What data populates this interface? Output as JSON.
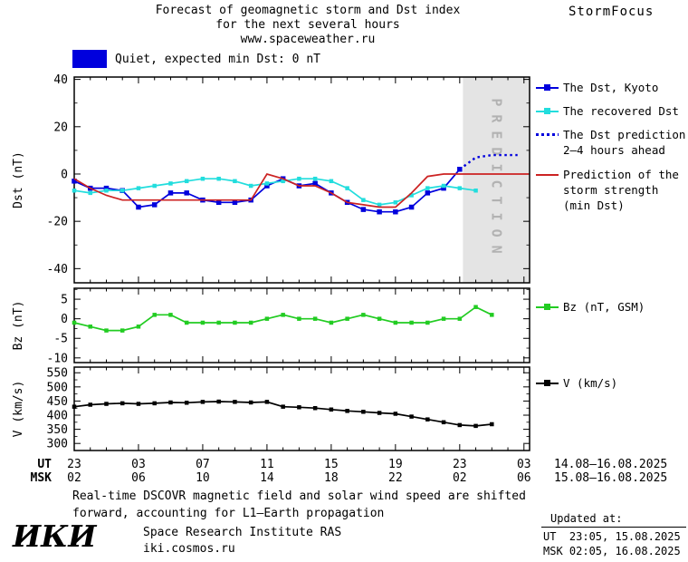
{
  "header": {
    "title_line1": "Forecast of geomagnetic storm and Dst index",
    "title_line2": "for the next several hours",
    "title_line3": "www.spaceweather.ru",
    "brand": "StormFocus"
  },
  "banner": {
    "status_label": "Quiet, expected min Dst: 0 nT",
    "swatch_color": "#0000dd"
  },
  "legend": {
    "items": [
      {
        "key": "dst-kyoto",
        "lines": [
          "The Dst, Kyoto"
        ],
        "color": "#0000dd",
        "marker": "line-square"
      },
      {
        "key": "recovered-dst",
        "lines": [
          "The recovered Dst"
        ],
        "color": "#22dddd",
        "marker": "line-square"
      },
      {
        "key": "dst-prediction",
        "lines": [
          "The Dst prediction",
          "2–4 hours ahead"
        ],
        "color": "#0000dd",
        "marker": "dotted-line"
      },
      {
        "key": "storm-strength",
        "lines": [
          "Prediction of the",
          "storm strength",
          "(min Dst)"
        ],
        "color": "#cc2222",
        "marker": "line"
      },
      {
        "key": "bz",
        "lines": [
          "Bz (nT, GSM)"
        ],
        "color": "#22cc22",
        "marker": "line-square"
      },
      {
        "key": "v",
        "lines": [
          "V (km/s)"
        ],
        "color": "#000000",
        "marker": "line-square"
      }
    ]
  },
  "footer": {
    "note_line1": "Real-time DSCOVR magnetic field and solar wind speed are shifted",
    "note_line2": "forward, accounting for L1–Earth propagation",
    "logo_text": "ИКИ",
    "institute": "Space Research Institute RAS",
    "website": "iki.cosmos.ru",
    "updated_label": "Updated at:",
    "updated_ut": "UT  23:05, 15.08.2025",
    "updated_msk": "MSK 02:05, 16.08.2025"
  },
  "chart_data": [
    {
      "type": "line",
      "panel": "dst",
      "ylabel": "Dst (nT)",
      "ylim": [
        -46,
        41
      ],
      "yticks": [
        -40,
        -20,
        0,
        20,
        40
      ],
      "xlim": [
        0,
        28.35
      ],
      "xticks": [
        0,
        4,
        8,
        12,
        16,
        20,
        24,
        28
      ],
      "grid": false,
      "legend_position": "right",
      "prediction_region": {
        "x_start": 24.2,
        "label": "PREDICTION"
      },
      "series": [
        {
          "key": "dst-kyoto",
          "name": "The Dst, Kyoto",
          "color": "#0000dd",
          "style": "solid",
          "marker": "square",
          "x": [
            0,
            1,
            2,
            3,
            4,
            5,
            6,
            7,
            8,
            9,
            10,
            11,
            12,
            13,
            14,
            15,
            16,
            17,
            18,
            19,
            20,
            21,
            22,
            23,
            24
          ],
          "values": [
            -3,
            -6,
            -6,
            -7,
            -14,
            -13,
            -8,
            -8,
            -11,
            -12,
            -12,
            -11,
            -5,
            -2,
            -5,
            -4,
            -8,
            -12,
            -15,
            -16,
            -16,
            -14,
            -8,
            -6,
            2
          ]
        },
        {
          "key": "recovered-dst",
          "name": "The recovered Dst",
          "color": "#22dddd",
          "style": "solid",
          "marker": "square",
          "x": [
            0,
            1,
            2,
            3,
            4,
            5,
            6,
            7,
            8,
            9,
            10,
            11,
            12,
            13,
            14,
            15,
            16,
            17,
            18,
            19,
            20,
            21,
            22,
            23,
            24,
            25
          ],
          "values": [
            -7,
            -8,
            -7,
            -7,
            -6,
            -5,
            -4,
            -3,
            -2,
            -2,
            -3,
            -5,
            -4,
            -3,
            -2,
            -2,
            -3,
            -6,
            -11,
            -13,
            -12,
            -9,
            -6,
            -5,
            -6,
            -7
          ]
        },
        {
          "key": "dst-prediction",
          "name": "The Dst prediction 2–4 hours ahead",
          "color": "#0000dd",
          "style": "dotted",
          "marker": "none",
          "x": [
            24,
            25,
            26,
            27,
            27.6
          ],
          "values": [
            2,
            7,
            8,
            8,
            8
          ]
        },
        {
          "key": "storm-strength",
          "name": "Prediction of the storm strength (min Dst)",
          "color": "#cc2222",
          "style": "solid",
          "marker": "none",
          "x": [
            0,
            1,
            2,
            3,
            4,
            5,
            6,
            7,
            8,
            9,
            10,
            11,
            12,
            13,
            14,
            15,
            16,
            17,
            18,
            19,
            20,
            21,
            22,
            23,
            24,
            28.3
          ],
          "values": [
            -2,
            -6,
            -9,
            -11,
            -11,
            -11,
            -11,
            -11,
            -11,
            -11,
            -11,
            -11,
            0,
            -2,
            -5,
            -5,
            -8,
            -12,
            -13,
            -14,
            -14,
            -8,
            -1,
            0,
            0,
            0
          ]
        }
      ]
    },
    {
      "type": "line",
      "panel": "bz",
      "ylabel": "Bz (nT)",
      "ylim": [
        -11.2,
        7.8
      ],
      "yticks": [
        -10,
        -5,
        0,
        5
      ],
      "xlim": [
        0,
        28.35
      ],
      "xticks": [
        0,
        4,
        8,
        12,
        16,
        20,
        24,
        28
      ],
      "grid": false,
      "series": [
        {
          "key": "bz",
          "name": "Bz (nT, GSM)",
          "color": "#22cc22",
          "style": "solid",
          "marker": "square",
          "x": [
            0,
            1,
            2,
            3,
            4,
            5,
            6,
            7,
            8,
            9,
            10,
            11,
            12,
            13,
            14,
            15,
            16,
            17,
            18,
            19,
            20,
            21,
            22,
            23,
            24,
            25,
            26
          ],
          "values": [
            -1,
            -2,
            -3,
            -3,
            -2,
            1,
            1,
            -1,
            -1,
            -1,
            -1,
            -1,
            0,
            1,
            0,
            0,
            -1,
            0,
            1,
            0,
            -1,
            -1,
            -1,
            0,
            0,
            3,
            1
          ]
        }
      ]
    },
    {
      "type": "line",
      "panel": "v",
      "ylabel": "V (km/s)",
      "ylim": [
        275,
        570
      ],
      "yticks": [
        300,
        350,
        400,
        450,
        500,
        550
      ],
      "xlim": [
        0,
        28.35
      ],
      "xticks": [
        0,
        4,
        8,
        12,
        16,
        20,
        24,
        28
      ],
      "grid": false,
      "series": [
        {
          "key": "v",
          "name": "V (km/s)",
          "color": "#000000",
          "style": "solid",
          "marker": "square",
          "x": [
            0,
            1,
            2,
            3,
            4,
            5,
            6,
            7,
            8,
            9,
            10,
            11,
            12,
            13,
            14,
            15,
            16,
            17,
            18,
            19,
            20,
            21,
            22,
            23,
            24,
            25,
            26
          ],
          "values": [
            430,
            437,
            440,
            442,
            440,
            442,
            445,
            444,
            447,
            448,
            447,
            445,
            447,
            430,
            428,
            425,
            420,
            415,
            412,
            408,
            405,
            395,
            385,
            375,
            365,
            362,
            368
          ]
        }
      ],
      "time_axis": {
        "ut_label": "UT",
        "msk_label": "MSK",
        "ut_ticks": [
          "23",
          "03",
          "07",
          "11",
          "15",
          "19",
          "23",
          "03"
        ],
        "msk_ticks": [
          "02",
          "06",
          "10",
          "14",
          "18",
          "22",
          "02",
          "06"
        ],
        "ut_dates": "14.08–16.08.2025",
        "msk_dates": "15.08–16.08.2025"
      }
    }
  ]
}
